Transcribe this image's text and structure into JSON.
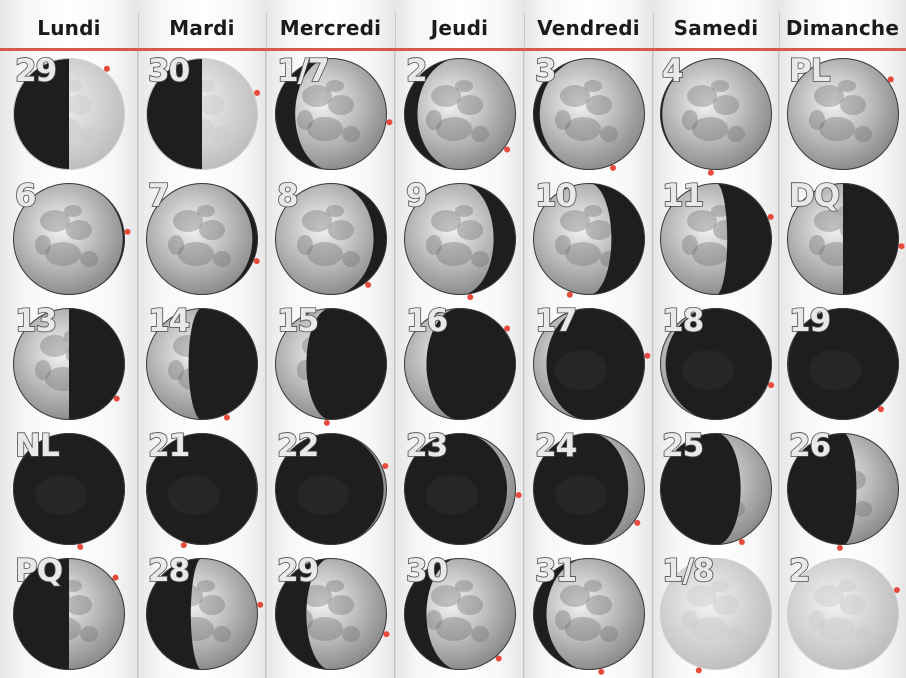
{
  "weekdays": [
    "Lundi",
    "Mardi",
    "Mercredi",
    "Jeudi",
    "Vendredi",
    "Samedi",
    "Dimanche"
  ],
  "colors": {
    "header_rule": "#d7594a",
    "marker": "#e84a3c",
    "moon_lit_light": "#f4f4f4",
    "moon_lit_dark": "#8a8a8a",
    "moon_shadow": "#1e1e1e",
    "moon_faded": "#bdbdbd"
  },
  "weeks": [
    [
      {
        "label": "29",
        "lit": "right",
        "illum": 0.5,
        "faded": true
      },
      {
        "label": "30",
        "lit": "right",
        "illum": 0.5,
        "faded": true
      },
      {
        "label": "1/7",
        "lit": "right",
        "illum": 0.82,
        "faded": false
      },
      {
        "label": "2",
        "lit": "right",
        "illum": 0.88,
        "faded": false
      },
      {
        "label": "3",
        "lit": "right",
        "illum": 0.94,
        "faded": false
      },
      {
        "label": "4",
        "lit": "right",
        "illum": 0.98,
        "faded": false
      },
      {
        "label": "PL",
        "lit": "full",
        "illum": 1.0,
        "faded": false
      }
    ],
    [
      {
        "label": "6",
        "lit": "left",
        "illum": 0.98,
        "faded": false
      },
      {
        "label": "7",
        "lit": "left",
        "illum": 0.95,
        "faded": false
      },
      {
        "label": "8",
        "lit": "left",
        "illum": 0.88,
        "faded": false
      },
      {
        "label": "9",
        "lit": "left",
        "illum": 0.8,
        "faded": false
      },
      {
        "label": "10",
        "lit": "left",
        "illum": 0.7,
        "faded": false
      },
      {
        "label": "11",
        "lit": "left",
        "illum": 0.6,
        "faded": false
      },
      {
        "label": "DQ",
        "lit": "left",
        "illum": 0.5,
        "faded": false
      }
    ],
    [
      {
        "label": "13",
        "lit": "left",
        "illum": 0.5,
        "faded": false
      },
      {
        "label": "14",
        "lit": "left",
        "illum": 0.38,
        "faded": false
      },
      {
        "label": "15",
        "lit": "left",
        "illum": 0.28,
        "faded": false
      },
      {
        "label": "16",
        "lit": "left",
        "illum": 0.2,
        "faded": false
      },
      {
        "label": "17",
        "lit": "left",
        "illum": 0.12,
        "faded": false
      },
      {
        "label": "18",
        "lit": "left",
        "illum": 0.05,
        "faded": false
      },
      {
        "label": "19",
        "lit": "left",
        "illum": 0.01,
        "faded": false
      }
    ],
    [
      {
        "label": "NL",
        "lit": "new",
        "illum": 0.0,
        "faded": false
      },
      {
        "label": "21",
        "lit": "right",
        "illum": 0.01,
        "faded": false
      },
      {
        "label": "22",
        "lit": "right",
        "illum": 0.03,
        "faded": false
      },
      {
        "label": "23",
        "lit": "right",
        "illum": 0.08,
        "faded": false
      },
      {
        "label": "24",
        "lit": "right",
        "illum": 0.15,
        "faded": false
      },
      {
        "label": "25",
        "lit": "right",
        "illum": 0.28,
        "faded": false
      },
      {
        "label": "26",
        "lit": "right",
        "illum": 0.38,
        "faded": false
      }
    ],
    [
      {
        "label": "PQ",
        "lit": "right",
        "illum": 0.5,
        "faded": false
      },
      {
        "label": "28",
        "lit": "right",
        "illum": 0.6,
        "faded": false
      },
      {
        "label": "29",
        "lit": "right",
        "illum": 0.72,
        "faded": false
      },
      {
        "label": "30",
        "lit": "right",
        "illum": 0.8,
        "faded": false
      },
      {
        "label": "31",
        "lit": "right",
        "illum": 0.88,
        "faded": false
      },
      {
        "label": "1/8",
        "lit": "full",
        "illum": 1.0,
        "faded": true
      },
      {
        "label": "2",
        "lit": "full",
        "illum": 1.0,
        "faded": true
      }
    ]
  ]
}
